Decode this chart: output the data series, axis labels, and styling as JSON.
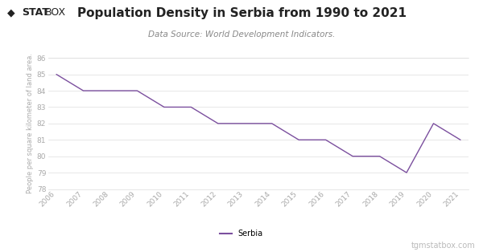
{
  "title": "Population Density in Serbia from 1990 to 2021",
  "subtitle": "Data Source: World Development Indicators.",
  "ylabel": "People per square kilometer of land area.",
  "legend_label": "Serbia",
  "watermark": "tgmstatbox.com",
  "line_color": "#7b4f9e",
  "background_color": "#ffffff",
  "grid_color": "#dddddd",
  "years": [
    2006,
    2007,
    2008,
    2009,
    2010,
    2011,
    2012,
    2013,
    2014,
    2015,
    2016,
    2017,
    2018,
    2019,
    2020,
    2021
  ],
  "values": [
    85.0,
    84.0,
    84.0,
    84.0,
    83.0,
    83.0,
    82.0,
    82.0,
    82.0,
    81.0,
    81.0,
    80.0,
    80.0,
    79.0,
    82.0,
    81.0
  ],
  "ylim": [
    78,
    86
  ],
  "yticks": [
    78,
    79,
    80,
    81,
    82,
    83,
    84,
    85,
    86
  ],
  "title_fontsize": 11,
  "subtitle_fontsize": 7.5,
  "tick_fontsize": 6.5,
  "ylabel_fontsize": 6,
  "legend_fontsize": 7,
  "watermark_fontsize": 7,
  "logo_diamond": "◆",
  "logo_stat": "STAT",
  "logo_box": "BOX"
}
